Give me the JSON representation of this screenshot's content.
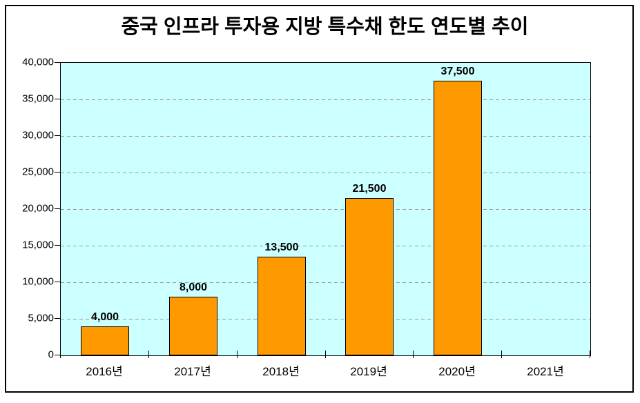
{
  "chart_data": {
    "type": "bar",
    "title": "중국 인프라 투자용 지방 특수채 한도 연도별 추이",
    "categories": [
      "2016년",
      "2017년",
      "2018년",
      "2019년",
      "2020년",
      "2021년"
    ],
    "values": [
      4000,
      8000,
      13500,
      21500,
      37500,
      null
    ],
    "bar_labels": [
      "4,000",
      "8,000",
      "13,500",
      "21,500",
      "37,500",
      ""
    ],
    "xlabel": "",
    "ylabel": "",
    "ylim": [
      0,
      40000
    ],
    "y_step": 5000,
    "y_tick_labels": [
      "40,000",
      "35,000",
      "30,000",
      "25,000",
      "20,000",
      "15,000",
      "10,000",
      "5,000",
      "0"
    ],
    "grid": "horizontal-dashed",
    "legend": "none",
    "colors": {
      "bar_fill": "#FF9900",
      "bar_border": "#000000",
      "plot_background": "#CCFFFF",
      "gridline": "#999999",
      "text": "#000000",
      "frame_border": "#000000",
      "chart_background": "#FFFFFF"
    }
  }
}
